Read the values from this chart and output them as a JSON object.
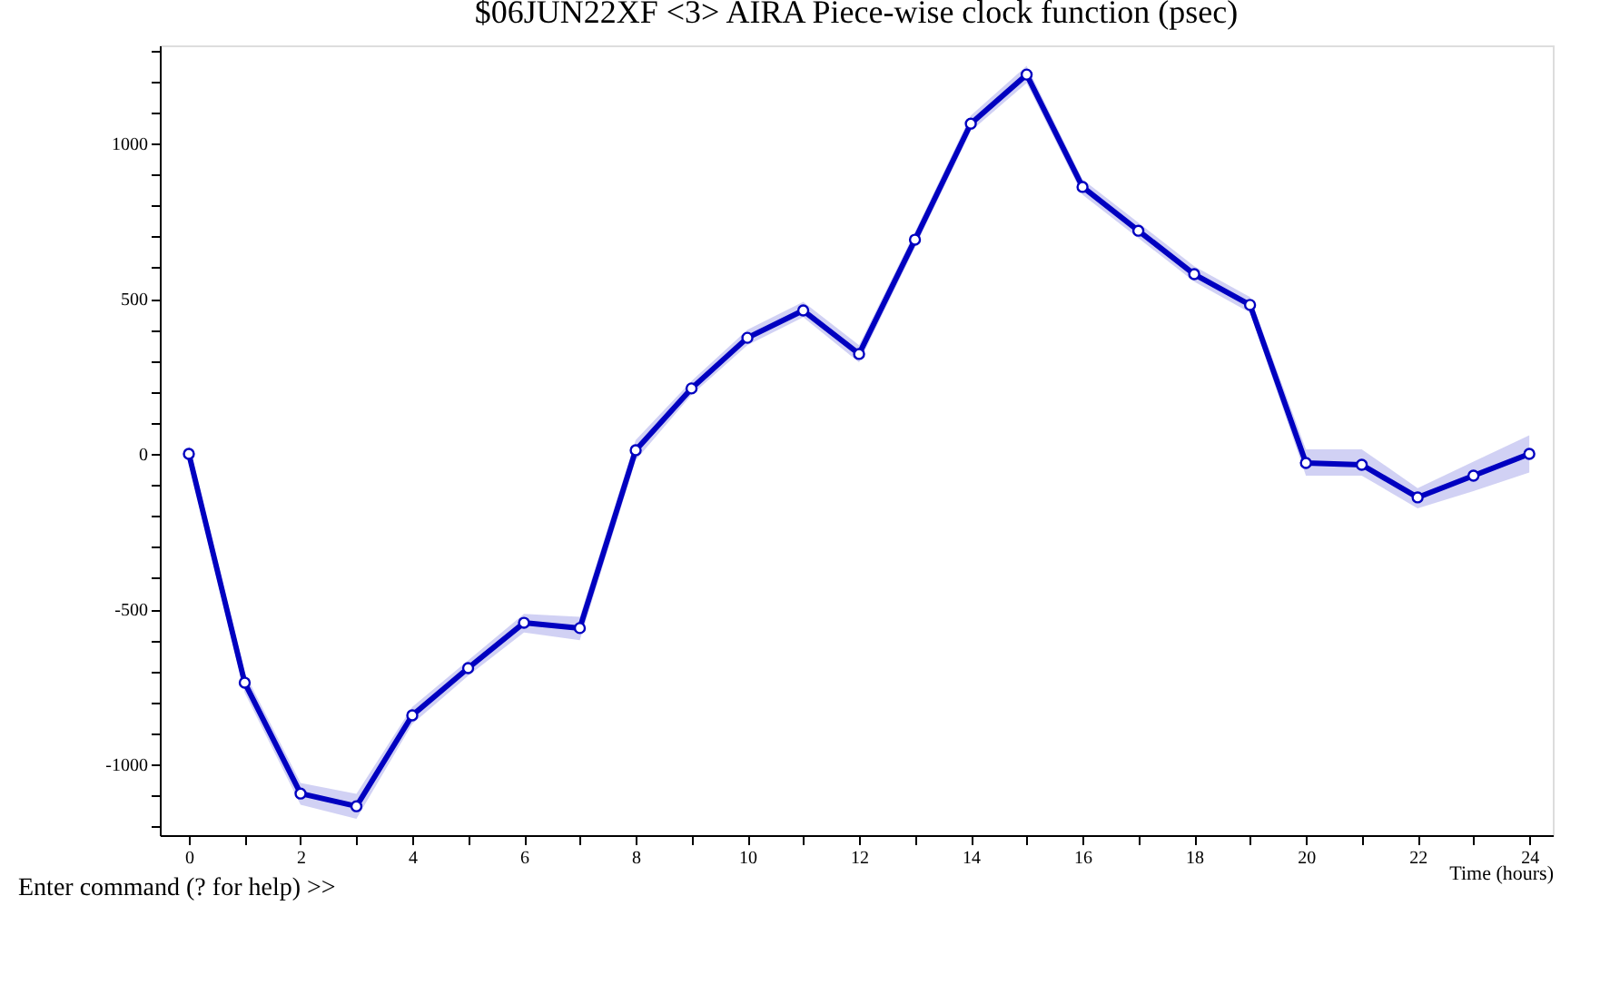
{
  "chart_data": {
    "type": "line",
    "title": "$06JUN22XF <3>  AIRA       Piece-wise clock function (psec)",
    "xlabel": "Time (hours)",
    "annotations": [
      "Enter command (? for help) >>"
    ],
    "x": [
      0,
      1,
      2,
      3,
      4,
      5,
      6,
      7,
      8,
      9,
      10,
      11,
      12,
      13,
      14,
      15,
      16,
      17,
      18,
      19,
      20,
      21,
      22,
      23,
      24
    ],
    "series": [
      {
        "color": "#0000c0",
        "values": [
          0,
          -737,
          -1094,
          -1135,
          -842,
          -690,
          -544,
          -561,
          12,
          211,
          374,
          462,
          322,
          690,
          1064,
          1222,
          860,
          719,
          579,
          480,
          -29,
          -35,
          -140,
          -70,
          0
        ],
        "lower": [
          -30,
          -770,
          -1130,
          -1175,
          -870,
          -715,
          -575,
          -600,
          -20,
          190,
          350,
          440,
          295,
          665,
          1040,
          1195,
          835,
          695,
          555,
          455,
          -70,
          -70,
          -175,
          -120,
          -60
        ],
        "upper": [
          30,
          -705,
          -1060,
          -1095,
          -815,
          -665,
          -515,
          -525,
          45,
          235,
          400,
          490,
          350,
          715,
          1090,
          1250,
          885,
          745,
          605,
          505,
          15,
          15,
          -110,
          -25,
          60
        ]
      }
    ],
    "marker": "circle",
    "line_style": "solid",
    "grid": false,
    "xlim": [
      -0.52,
      24.42
    ],
    "ylim": [
      -1228,
      1316
    ],
    "xticks": [
      0,
      {
        "value": 1,
        "label": null
      },
      2,
      {
        "value": 3,
        "label": null
      },
      4,
      {
        "value": 5,
        "label": null
      },
      6,
      {
        "value": 7,
        "label": null
      },
      8,
      {
        "value": 9,
        "label": null
      },
      10,
      {
        "value": 11,
        "label": null
      },
      12,
      {
        "value": 13,
        "label": null
      },
      14,
      {
        "value": 15,
        "label": null
      },
      16,
      {
        "value": 17,
        "label": null
      },
      18,
      {
        "value": 19,
        "label": null
      },
      20,
      {
        "value": 21,
        "label": null
      },
      22,
      {
        "value": 23,
        "label": null
      },
      24
    ],
    "yticks": [
      {
        "value": -1200,
        "label": null
      },
      {
        "value": -1100,
        "label": null
      },
      -1000,
      {
        "value": -900,
        "label": null
      },
      {
        "value": -800,
        "label": null
      },
      {
        "value": -700,
        "label": null
      },
      {
        "value": -600,
        "label": null
      },
      -500,
      {
        "value": -400,
        "label": null
      },
      {
        "value": -300,
        "label": null
      },
      {
        "value": -200,
        "label": null
      },
      {
        "value": -100,
        "label": null
      },
      0,
      {
        "value": 100,
        "label": null
      },
      {
        "value": 200,
        "label": null
      },
      {
        "value": 300,
        "label": null
      },
      {
        "value": 400,
        "label": null
      },
      500,
      {
        "value": 600,
        "label": null
      },
      {
        "value": 700,
        "label": null
      },
      {
        "value": 800,
        "label": null
      },
      {
        "value": 900,
        "label": null
      },
      1000,
      {
        "value": 1100,
        "label": null
      },
      {
        "value": 1200,
        "label": null
      },
      {
        "value": 1300,
        "label": null
      }
    ]
  }
}
